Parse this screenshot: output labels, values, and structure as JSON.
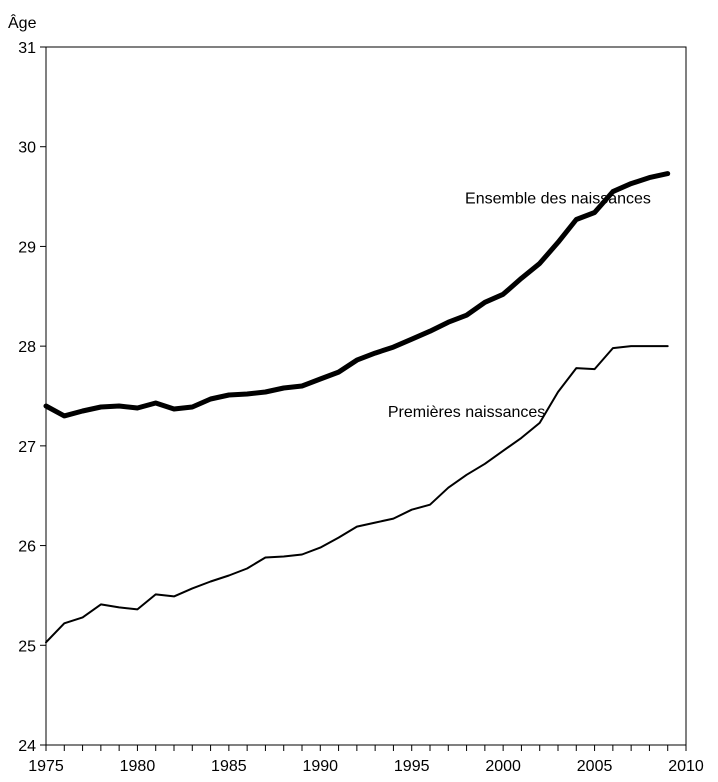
{
  "chart_data": {
    "type": "line",
    "title": "",
    "xlabel": "",
    "ylabel": "Âge",
    "xlim": [
      1975,
      2010
    ],
    "ylim": [
      24,
      31
    ],
    "xticks": [
      1975,
      1980,
      1985,
      1990,
      1995,
      2000,
      2005,
      2010
    ],
    "yticks": [
      24,
      25,
      26,
      27,
      28,
      29,
      30,
      31
    ],
    "grid": false,
    "series": [
      {
        "name": "Ensemble des naissances",
        "style": "thick",
        "x": [
          1975,
          1976,
          1977,
          1978,
          1979,
          1980,
          1981,
          1982,
          1983,
          1984,
          1985,
          1986,
          1987,
          1988,
          1989,
          1990,
          1991,
          1992,
          1993,
          1994,
          1995,
          1996,
          1997,
          1998,
          1999,
          2000,
          2001,
          2002,
          2003,
          2004,
          2005,
          2006,
          2007,
          2008,
          2009
        ],
        "values": [
          27.4,
          27.3,
          27.35,
          27.39,
          27.4,
          27.38,
          27.43,
          27.37,
          27.39,
          27.47,
          27.51,
          27.52,
          27.54,
          27.58,
          27.6,
          27.67,
          27.74,
          27.86,
          27.93,
          27.99,
          28.07,
          28.15,
          28.24,
          28.31,
          28.44,
          28.52,
          28.68,
          28.83,
          29.04,
          29.27,
          29.34,
          29.55,
          29.63,
          29.69,
          29.73
        ]
      },
      {
        "name": "Premières naissances",
        "style": "thin",
        "x": [
          1975,
          1976,
          1977,
          1978,
          1979,
          1980,
          1981,
          1982,
          1983,
          1984,
          1985,
          1986,
          1987,
          1988,
          1989,
          1990,
          1991,
          1992,
          1993,
          1994,
          1995,
          1996,
          1997,
          1998,
          1999,
          2000,
          2001,
          2002,
          2003,
          2004,
          2005,
          2006,
          2007,
          2008,
          2009
        ],
        "values": [
          25.03,
          25.22,
          25.28,
          25.41,
          25.38,
          25.36,
          25.51,
          25.49,
          25.57,
          25.64,
          25.7,
          25.77,
          25.88,
          25.89,
          25.91,
          25.98,
          26.08,
          26.19,
          26.23,
          26.27,
          26.36,
          26.41,
          26.58,
          26.71,
          26.82,
          26.95,
          27.08,
          27.23,
          27.54,
          27.78,
          27.77,
          27.98,
          28.0,
          28.0,
          28.0
        ]
      }
    ]
  }
}
